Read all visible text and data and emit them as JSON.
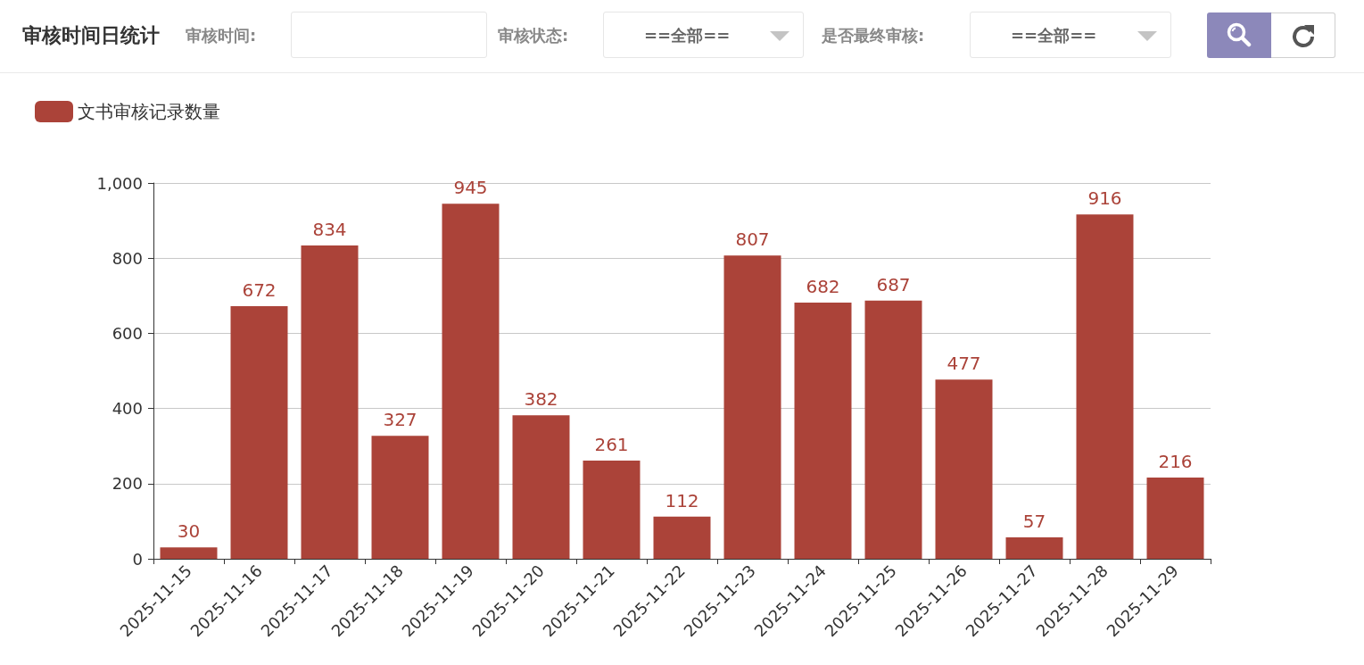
{
  "chart_data": {
    "type": "bar",
    "title": "审核时间日统计",
    "annotations": [
      "审核时间:",
      "审核状态:",
      "==全部==",
      "是否最终审核:",
      "==全部=="
    ],
    "categories": [
      "2025-11-15",
      "2025-11-16",
      "2025-11-17",
      "2025-11-18",
      "2025-11-19",
      "2025-11-20",
      "2025-11-21",
      "2025-11-22",
      "2025-11-23",
      "2025-11-24",
      "2025-11-25",
      "2025-11-26",
      "2025-11-27",
      "2025-11-28",
      "2025-11-29"
    ],
    "series": [
      {
        "name": "文书审核记录数量",
        "color": "#ab4339",
        "values": [
          30,
          672,
          834,
          327,
          945,
          382,
          261,
          112,
          807,
          682,
          687,
          477,
          57,
          916,
          216
        ]
      }
    ],
    "ylim": [
      0,
      1000
    ],
    "yticks": [
      0,
      200,
      400,
      600,
      800,
      {
        "value": 1000,
        "label": "1,000"
      }
    ],
    "grid": "y",
    "legend": "top left",
    "data_labels": true
  }
}
